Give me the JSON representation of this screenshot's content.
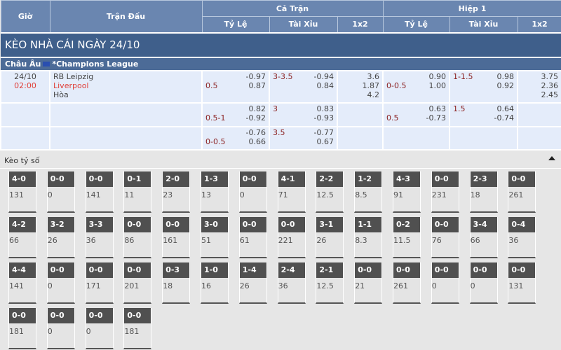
{
  "header": {
    "gio": "Giờ",
    "tran_dau": "Trận Đấu",
    "ca_tran": "Cả Trận",
    "hiep1": "Hiệp 1",
    "ty_le": "Tỷ Lệ",
    "tai_xiu": "Tài Xỉu",
    "x12": "1x2"
  },
  "title": "KÈO NHÀ CÁI NGÀY 24/10",
  "league": {
    "region": "Châu Âu",
    "flag_icon": "eu-flag-icon",
    "name": "*Champions League"
  },
  "match": {
    "date": "24/10",
    "time": "02:00",
    "home": "RB Leipzig",
    "away": "Liverpool",
    "draw": "Hòa"
  },
  "rows": [
    {
      "ft_hdp": "0.5",
      "ft_hdp_o": [
        "-0.97",
        "0.87"
      ],
      "ft_ou": "3-3.5",
      "ft_ou_o": [
        "-0.94",
        "0.84"
      ],
      "ft_1x2": [
        "3.6",
        "1.87",
        "4.2"
      ],
      "h1_hdp": "0-0.5",
      "h1_hdp_o": [
        "0.90",
        "1.00"
      ],
      "h1_ou": "1-1.5",
      "h1_ou_o": [
        "0.98",
        "0.92"
      ],
      "h1_1x2": [
        "3.75",
        "2.36",
        "2.45"
      ]
    },
    {
      "ft_hdp": "0.5-1",
      "ft_hdp_o": [
        "0.82",
        "-0.92"
      ],
      "ft_ou": "3",
      "ft_ou_o": [
        "0.83",
        "-0.93"
      ],
      "ft_1x2": [
        "",
        "",
        ""
      ],
      "h1_hdp": "0.5",
      "h1_hdp_o": [
        "0.63",
        "-0.73"
      ],
      "h1_ou": "1.5",
      "h1_ou_o": [
        "0.64",
        "-0.74"
      ],
      "h1_1x2": [
        "",
        "",
        ""
      ]
    },
    {
      "ft_hdp": "0-0.5",
      "ft_hdp_o": [
        "-0.76",
        "0.66"
      ],
      "ft_ou": "3.5",
      "ft_ou_o": [
        "-0.77",
        "0.67"
      ],
      "ft_1x2": [
        "",
        "",
        ""
      ],
      "h1_hdp": "",
      "h1_hdp_o": [
        "",
        ""
      ],
      "h1_ou": "",
      "h1_ou_o": [
        "",
        ""
      ],
      "h1_1x2": [
        "",
        "",
        ""
      ]
    }
  ],
  "keo_ty_so": {
    "label": "Kèo tỷ số",
    "toggle_icon": "caret-up-icon",
    "cards": [
      [
        "4-0",
        "131"
      ],
      [
        "0-0",
        "0"
      ],
      [
        "0-0",
        "141"
      ],
      [
        "0-1",
        "11"
      ],
      [
        "2-0",
        "23"
      ],
      [
        "1-3",
        "13"
      ],
      [
        "0-0",
        "0"
      ],
      [
        "4-1",
        "71"
      ],
      [
        "2-2",
        "12.5"
      ],
      [
        "1-2",
        "8.5"
      ],
      [
        "4-3",
        "91"
      ],
      [
        "0-0",
        "231"
      ],
      [
        "2-3",
        "18"
      ],
      [
        "0-0",
        "261"
      ],
      [
        "4-2",
        "66"
      ],
      [
        "3-2",
        "26"
      ],
      [
        "3-3",
        "36"
      ],
      [
        "0-0",
        "86"
      ],
      [
        "0-0",
        "161"
      ],
      [
        "3-0",
        "51"
      ],
      [
        "0-0",
        "61"
      ],
      [
        "0-0",
        "221"
      ],
      [
        "3-1",
        "26"
      ],
      [
        "1-1",
        "8.3"
      ],
      [
        "0-2",
        "11.5"
      ],
      [
        "0-0",
        "76"
      ],
      [
        "3-4",
        "66"
      ],
      [
        "0-4",
        "36"
      ],
      [
        "4-4",
        "141"
      ],
      [
        "0-0",
        "0"
      ],
      [
        "0-0",
        "171"
      ],
      [
        "0-0",
        "201"
      ],
      [
        "0-3",
        "18"
      ],
      [
        "1-0",
        "16"
      ],
      [
        "1-4",
        "26"
      ],
      [
        "2-4",
        "36"
      ],
      [
        "2-1",
        "12.5"
      ],
      [
        "0-0",
        "21"
      ],
      [
        "0-0",
        "261"
      ],
      [
        "0-0",
        "0"
      ],
      [
        "0-0",
        "0"
      ],
      [
        "0-0",
        "131"
      ],
      [
        "0-0",
        "181"
      ],
      [
        "0-0",
        "0"
      ],
      [
        "0-0",
        "0"
      ],
      [
        "0-0",
        "181"
      ]
    ]
  }
}
